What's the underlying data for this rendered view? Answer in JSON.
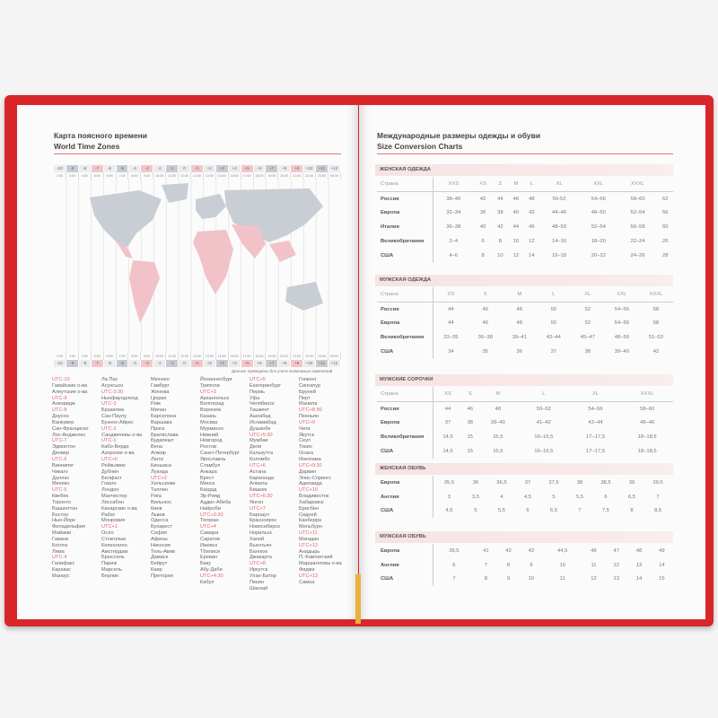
{
  "left_page": {
    "title_ru": "Карта поясного времени",
    "title_en": "World Time Zones",
    "timeline": {
      "zones": [
        "-10",
        "-9",
        "-8",
        "-7",
        "-6",
        "-5",
        "-4",
        "-3",
        "-2",
        "-1",
        "0",
        "+1",
        "+2",
        "+3",
        "+4",
        "+5",
        "+6",
        "+7",
        "+8",
        "+9",
        "+10",
        "+11",
        "+12"
      ],
      "times": [
        "2:00",
        "3:00",
        "4:00",
        "5:00",
        "6:00",
        "7:00",
        "8:00",
        "9:00",
        "10:00",
        "11:00",
        "12:00",
        "13:00",
        "14:00",
        "15:00",
        "16:00",
        "17:00",
        "18:00",
        "19:00",
        "20:00",
        "21:00",
        "22:00",
        "23:00",
        "00:00"
      ],
      "tones": [
        "light",
        "gray",
        "light",
        "pink",
        "light",
        "gray",
        "light",
        "pink",
        "light",
        "gray",
        "light",
        "pink",
        "light",
        "gray",
        "light",
        "pink",
        "light",
        "gray",
        "light",
        "pink",
        "light",
        "gray",
        "light"
      ]
    },
    "colors": {
      "pink": "#f3c6ca",
      "gray": "#c7ccd4",
      "light": "#ececec",
      "utc": "#e0666c",
      "cover": "#d8262b"
    },
    "note": "Данные приведены без учета возможных изменений",
    "city_columns": [
      [
        "UTC-10",
        "Гавайские о-ва",
        "Алеутские о-ва",
        "UTC-9",
        "Анкоридж",
        "UTC-8",
        "Доусон",
        "Ванкувер",
        "Сан-Франциско",
        "Лос-Анджелес",
        "UTC-7",
        "Эдмонтон",
        "Денвер",
        "UTC-6",
        "Виннипег",
        "Чикаго",
        "Даллас",
        "Мехико",
        "UTC-5",
        "Квебек",
        "Торонто",
        "Вашингтон",
        "Бостон",
        "Нью-Йорк",
        "Филадельфия",
        "Майами",
        "Гавана",
        "Богота",
        "Лима",
        "UTC-4",
        "Галифакс",
        "Каракас",
        "Манаус"
      ],
      [
        "Ла Пас",
        "Асунсьон",
        "UTC-3:30",
        "Ньюфаундленд",
        "UTC-3",
        "Бразилиа",
        "Сан-Паулу",
        "Буэнос-Айрес",
        "UTC-2",
        "Сандвичевы о-ва",
        "UTC-1",
        "Кабо-Верде",
        "Азорские о-ва",
        "UTC+0",
        "Рейкьявик",
        "Дублин",
        "Белфаст",
        "Глазго",
        "Лондон",
        "Манчестер",
        "Лиссабон",
        "Канарские о-ва",
        "Рабат",
        "Монровия",
        "UTC+1",
        "Осло",
        "Стокгольм",
        "Копенгаген",
        "Амстердам",
        "Брюссель",
        "Париж",
        "Марсель",
        "Берлин"
      ],
      [
        "Мюнхен",
        "Гамбург",
        "Женева",
        "Цюрих",
        "Рим",
        "Милан",
        "Барселона",
        "Варшава",
        "Прага",
        "Братислава",
        "Будапешт",
        "Вена",
        "Алжир",
        "Лагос",
        "Киншаса",
        "Луанда",
        "UTC+2",
        "Хельсинки",
        "Таллин",
        "Рига",
        "Вильнюс",
        "Киев",
        "Львов",
        "Одесса",
        "Бухарест",
        "София",
        "Афины",
        "Никосия",
        "Тель-Авив",
        "Дамаск",
        "Бейрут",
        "Каир",
        "Претория"
      ],
      [
        "Йоханнесбург",
        "Триполи",
        "UTC+3",
        "Архангельск",
        "Волгоград",
        "Воронеж",
        "Казань",
        "Москва",
        "Мурманск",
        "Нижний",
        "Новгород",
        "Ростов",
        "Санкт-Петербург",
        "Ярославль",
        "Стамбул",
        "Анкара",
        "Брест",
        "Минск",
        "Багдад",
        "Эр-Рияд",
        "Аддис-Абеба",
        "Найроби",
        "UTC+3:30",
        "Тегеран",
        "UTC+4",
        "Самара",
        "Саратов",
        "Ижевск",
        "Тбилиси",
        "Ереван",
        "Баку",
        "Абу-Даби",
        "UTC+4:30",
        "Кабул"
      ],
      [
        "UTC+5",
        "Екатеринбург",
        "Пермь",
        "Уфа",
        "Челябинск",
        "Ташкент",
        "Ашхабад",
        "Исламабад",
        "Душанбе",
        "UTC+5:30",
        "Мумбаи",
        "Дели",
        "Калькутта",
        "Коломбо",
        "UTC+6",
        "Астана",
        "Караганда",
        "Алматы",
        "Бишкек",
        "UTC+6:30",
        "Янгон",
        "UTC+7",
        "Барнаул",
        "Красноярск",
        "Новосибирск",
        "Норильск",
        "Ханой",
        "Вьентьян",
        "Бангкок",
        "Джакарта",
        "UTC+8",
        "Иркутск",
        "Улан-Батор",
        "Пекин",
        "Шанхай"
      ],
      [
        "Гонконг",
        "Сингапур",
        "Бруней",
        "Перт",
        "Манила",
        "UTC+8:30",
        "Пхеньян",
        "UTC+9",
        "Чита",
        "Якутск",
        "Сеул",
        "Токио",
        "Осака",
        "Иокогама",
        "UTC+9:30",
        "Дарвин",
        "Элис-Спрингс",
        "Аделаида",
        "UTC+10",
        "Владивосток",
        "Хабаровск",
        "Брисбен",
        "Сидней",
        "Канберра",
        "Мельбурн",
        "UTC+11",
        "Магадан",
        "UTC+12",
        "Анадырь",
        "П.-Камчатский",
        "Маршалловы о-ва",
        "Фиджи",
        "UTC+13",
        "Самоа"
      ]
    ]
  },
  "right_page": {
    "title_ru": "Международные размеры одежды и обуви",
    "title_en": "Size Conversion Charts",
    "sections": [
      {
        "title": "ЖЕНСКАЯ ОДЕЖДА",
        "header": [
          "Страна",
          "XXS",
          "XS",
          "S",
          "M",
          "L",
          "XL",
          "XXL",
          "XXXL",
          ""
        ],
        "rows": [
          [
            "Россия",
            "38–40",
            "42",
            "44",
            "46",
            "48",
            "50-52",
            "54–56",
            "58–60",
            "62"
          ],
          [
            "Европа",
            "32–34",
            "36",
            "38",
            "40",
            "42",
            "44–46",
            "48–50",
            "52–54",
            "56"
          ],
          [
            "Италия",
            "36–38",
            "40",
            "42",
            "44",
            "46",
            "48–50",
            "52–54",
            "56–58",
            "60"
          ],
          [
            "Великобритания",
            "2–4",
            "6",
            "8",
            "10",
            "12",
            "14–16",
            "18–20",
            "22–24",
            "26"
          ],
          [
            "США",
            "4–6",
            "8",
            "10",
            "12",
            "14",
            "16–18",
            "20–22",
            "24–26",
            "28"
          ]
        ]
      },
      {
        "title": "МУЖСКАЯ ОДЕЖДА",
        "header": [
          "Страна",
          "XS",
          "S",
          "M",
          "L",
          "XL",
          "XXL",
          "XXXL"
        ],
        "rows": [
          [
            "Россия",
            "44",
            "46",
            "48",
            "50",
            "52",
            "54–56",
            "58"
          ],
          [
            "Европа",
            "44",
            "46",
            "48",
            "50",
            "52",
            "54–56",
            "58"
          ],
          [
            "Великобритания",
            "33–35",
            "36–38",
            "39–41",
            "42–44",
            "45–47",
            "48–50",
            "51–53"
          ],
          [
            "США",
            "34",
            "35",
            "36",
            "37",
            "38",
            "39–40",
            "42"
          ]
        ]
      },
      {
        "title": "МУЖСКИЕ СОРОЧКИ",
        "header": [
          "Страна",
          "XS",
          "S",
          "M",
          "L",
          "XL",
          "XXXL"
        ],
        "rows": [
          [
            "Россия",
            "44",
            "46",
            "48",
            "50–52",
            "54–56",
            "58–60"
          ],
          [
            "Европа",
            "37",
            "38",
            "39–40",
            "41–42",
            "43–44",
            "45–46"
          ],
          [
            "Великобритания",
            "14,5",
            "15",
            "15,5",
            "16–16,5",
            "17–17,5",
            "18–18,5"
          ],
          [
            "США",
            "14,5",
            "15",
            "15,5",
            "16–16,5",
            "17–17,5",
            "18–18,5"
          ]
        ]
      },
      {
        "title": "ЖЕНСКАЯ ОБУВЬ",
        "header": null,
        "rows": [
          [
            "Европа",
            "35,5",
            "36",
            "36,5",
            "37",
            "37,5",
            "38",
            "38,5",
            "39",
            "39,5"
          ],
          [
            "Англия",
            "3",
            "3,5",
            "4",
            "4,5",
            "5",
            "5,5",
            "6",
            "6,5",
            "7"
          ],
          [
            "США",
            "4,5",
            "5",
            "5,5",
            "6",
            "6,5",
            "7",
            "7,5",
            "8",
            "8,5"
          ]
        ]
      },
      {
        "title": "МУЖСКАЯ ОБУВЬ",
        "header": null,
        "rows": [
          [
            "Европа",
            "39,5",
            "41",
            "42",
            "43",
            "44,5",
            "46",
            "47",
            "48",
            "49"
          ],
          [
            "Англия",
            "6",
            "7",
            "8",
            "9",
            "10",
            "11",
            "12",
            "13",
            "14"
          ],
          [
            "США",
            "7",
            "8",
            "9",
            "10",
            "11",
            "12",
            "13",
            "14",
            "15"
          ]
        ]
      }
    ]
  }
}
